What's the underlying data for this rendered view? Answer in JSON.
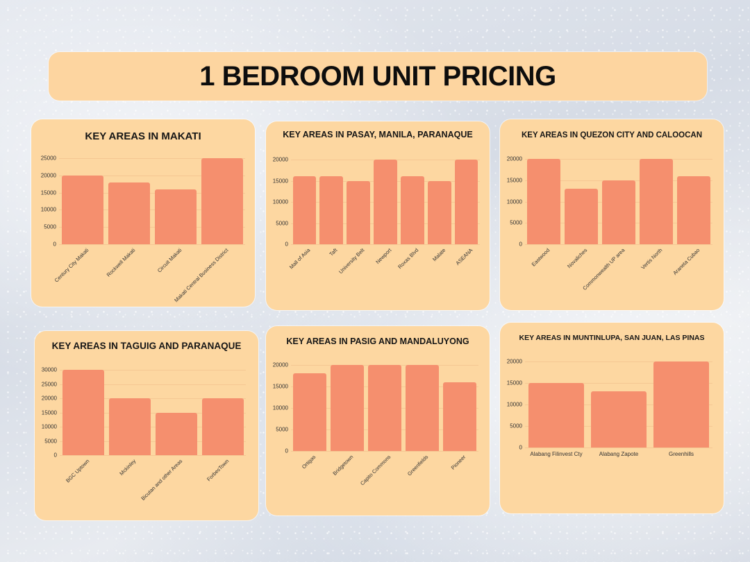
{
  "header": {
    "title": "1 BEDROOM UNIT PRICING"
  },
  "colors": {
    "bar": "#F58F6E",
    "card": "#FDD7A1",
    "header": "#FDD5A0",
    "text": "#161616"
  },
  "chart_data": [
    {
      "type": "bar",
      "title": "KEY AREAS IN MAKATI",
      "categories": [
        "Century City Makati",
        "Rockwell Makati",
        "Circuit Makati",
        "Makati Central Business District"
      ],
      "values": [
        20000,
        18000,
        16000,
        25000
      ],
      "yticks": [
        0,
        5000,
        10000,
        15000,
        20000,
        25000
      ],
      "ylim": [
        0,
        25000
      ],
      "xlabel": "",
      "ylabel": "",
      "grid": true,
      "label_rotation": -45
    },
    {
      "type": "bar",
      "title": "KEY AREAS IN PASAY, MANILA, PARANAQUE",
      "categories": [
        "Mall of Asia",
        "Taft",
        "University Belt",
        "Newport",
        "Roxas Blvd",
        "Malate",
        "ASEANA"
      ],
      "values": [
        16000,
        16000,
        15000,
        20000,
        16000,
        15000,
        20000
      ],
      "yticks": [
        0,
        5000,
        10000,
        15000,
        20000
      ],
      "ylim": [
        0,
        20000
      ],
      "xlabel": "",
      "ylabel": "",
      "grid": true,
      "label_rotation": -45
    },
    {
      "type": "bar",
      "title": "KEY AREAS IN QUEZON CITY AND CALOOCAN",
      "categories": [
        "Eastwood",
        "Novaliches",
        "Commonwealth UP area",
        "Vertis North",
        "Araneta Cubao"
      ],
      "values": [
        20000,
        13000,
        15000,
        20000,
        16000
      ],
      "yticks": [
        0,
        5000,
        10000,
        15000,
        20000
      ],
      "ylim": [
        0,
        20000
      ],
      "xlabel": "",
      "ylabel": "",
      "grid": true,
      "label_rotation": -45
    },
    {
      "type": "bar",
      "title": "KEY AREAS IN TAGUIG AND PARANAQUE",
      "categories": [
        "BGC Uptown",
        "Mckinley",
        "Bicutan and other Areas",
        "ForbesTown"
      ],
      "values": [
        30000,
        20000,
        15000,
        20000
      ],
      "yticks": [
        0,
        5000,
        10000,
        15000,
        20000,
        25000,
        30000
      ],
      "ylim": [
        0,
        30000
      ],
      "xlabel": "",
      "ylabel": "",
      "grid": true,
      "label_rotation": -45
    },
    {
      "type": "bar",
      "title": "KEY AREAS IN PASIG AND MANDALUYONG",
      "categories": [
        "Ortigas",
        "Bridgetown",
        "Capito Commons",
        "Greenfields",
        "Pioneer"
      ],
      "values": [
        18000,
        20000,
        20000,
        20000,
        16000
      ],
      "yticks": [
        0,
        5000,
        10000,
        15000,
        20000
      ],
      "ylim": [
        0,
        20000
      ],
      "xlabel": "",
      "ylabel": "",
      "grid": true,
      "label_rotation": -45
    },
    {
      "type": "bar",
      "title": "KEY AREAS IN MUNTINLUPA, SAN JUAN, LAS PINAS",
      "categories": [
        "Alabang Filinvest Cty",
        "Alabang Zapote",
        "Greenhills"
      ],
      "values": [
        15000,
        13000,
        20000
      ],
      "yticks": [
        0,
        5000,
        10000,
        15000,
        20000
      ],
      "ylim": [
        0,
        20000
      ],
      "xlabel": "",
      "ylabel": "",
      "grid": true,
      "label_rotation": 0
    }
  ]
}
